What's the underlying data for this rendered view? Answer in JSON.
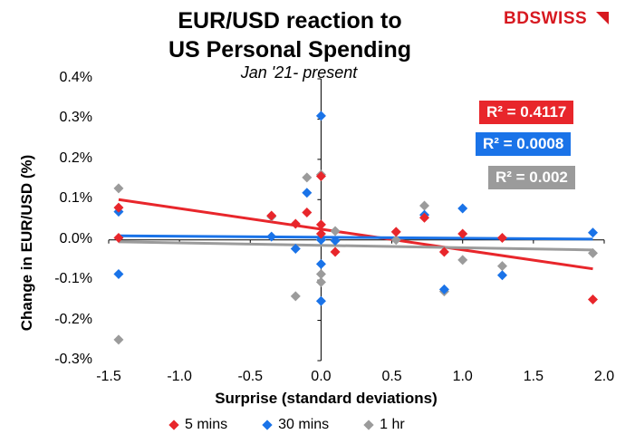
{
  "logo": {
    "text_a": "BD",
    "text_b": "SWISS"
  },
  "chart_data": {
    "type": "scatter",
    "title_line1": "EUR/USD reaction to",
    "title_line2": "US Personal Spending",
    "subtitle": "Jan '21- present",
    "xlabel": "Surprise (standard deviations)",
    "ylabel": "Change in EUR/USD   (%)",
    "xlim": [
      -1.5,
      2.0
    ],
    "ylim": [
      -0.3,
      0.4
    ],
    "x_ticks": [
      -1.5,
      -1.0,
      -0.5,
      0.0,
      0.5,
      1.0,
      1.5,
      2.0
    ],
    "x_tick_labels": [
      "-1.5",
      "-1.0",
      "-0.5",
      "0.0",
      "0.5",
      "1.0",
      "1.5",
      "2.0"
    ],
    "y_ticks": [
      -0.3,
      -0.2,
      -0.1,
      0.0,
      0.1,
      0.2,
      0.3,
      0.4
    ],
    "y_tick_labels": [
      "-0.3%",
      "-0.2%",
      "-0.1%",
      "0.0%",
      "0.1%",
      "0.2%",
      "0.3%",
      "0.4%"
    ],
    "series": [
      {
        "name": "5 mins",
        "color": "#e8262b",
        "r2_label": "R² = 0.4117",
        "trend": [
          [
            -1.43,
            0.1
          ],
          [
            1.92,
            -0.072
          ]
        ],
        "points": [
          [
            -1.43,
            0.08
          ],
          [
            -1.43,
            0.005
          ],
          [
            -0.35,
            0.06
          ],
          [
            -0.18,
            0.04
          ],
          [
            -0.1,
            0.068
          ],
          [
            0.0,
            0.158
          ],
          [
            0.0,
            0.038
          ],
          [
            0.0,
            0.015
          ],
          [
            0.1,
            -0.03
          ],
          [
            0.53,
            0.02
          ],
          [
            0.73,
            0.055
          ],
          [
            0.87,
            -0.03
          ],
          [
            1.0,
            0.015
          ],
          [
            1.28,
            0.005
          ],
          [
            1.92,
            -0.148
          ]
        ]
      },
      {
        "name": "30 mins",
        "color": "#1a73e8",
        "r2_label": "R² = 0.0008",
        "trend": [
          [
            -1.43,
            0.01
          ],
          [
            1.92,
            0.002
          ]
        ],
        "points": [
          [
            -1.43,
            0.07
          ],
          [
            -1.43,
            -0.085
          ],
          [
            -0.35,
            0.008
          ],
          [
            -0.18,
            -0.022
          ],
          [
            -0.1,
            0.117
          ],
          [
            0.0,
            0.308
          ],
          [
            0.0,
            0.0
          ],
          [
            0.0,
            -0.06
          ],
          [
            0.0,
            -0.152
          ],
          [
            0.1,
            -0.002
          ],
          [
            0.73,
            0.062
          ],
          [
            0.87,
            -0.123
          ],
          [
            1.0,
            0.078
          ],
          [
            1.28,
            -0.088
          ],
          [
            1.92,
            0.018
          ]
        ]
      },
      {
        "name": "1 hr",
        "color": "#9b9b9b",
        "r2_label": "R² = 0.002",
        "trend": [
          [
            -1.43,
            -0.005
          ],
          [
            1.92,
            -0.025
          ]
        ],
        "points": [
          [
            -1.43,
            0.128
          ],
          [
            -1.43,
            -0.248
          ],
          [
            -0.35,
            0.058
          ],
          [
            -0.18,
            -0.14
          ],
          [
            -0.1,
            0.155
          ],
          [
            0.0,
            0.162
          ],
          [
            0.0,
            -0.085
          ],
          [
            0.0,
            -0.105
          ],
          [
            0.1,
            0.022
          ],
          [
            0.53,
            0.0
          ],
          [
            0.73,
            0.085
          ],
          [
            0.87,
            -0.128
          ],
          [
            1.0,
            -0.05
          ],
          [
            1.28,
            -0.065
          ],
          [
            1.92,
            -0.033
          ]
        ]
      }
    ]
  }
}
